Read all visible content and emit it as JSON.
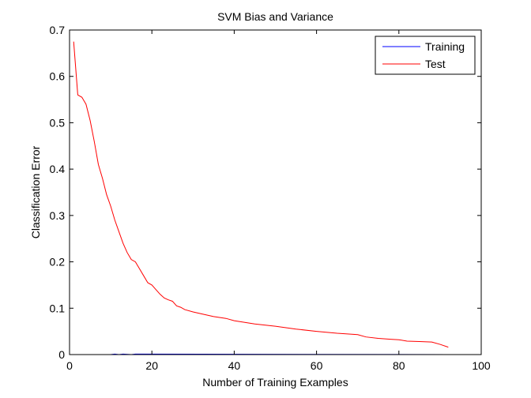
{
  "chart_data": {
    "type": "line",
    "title": "SVM Bias and Variance",
    "xlabel": "Number of Training Examples",
    "ylabel": "Classification Error",
    "xlim": [
      0,
      100
    ],
    "ylim": [
      0,
      0.7
    ],
    "xticks": [
      0,
      20,
      40,
      60,
      80,
      100
    ],
    "xtick_labels": [
      "0",
      "20",
      "40",
      "60",
      "80",
      "100"
    ],
    "yticks": [
      0,
      0.1,
      0.2,
      0.3,
      0.4,
      0.5,
      0.6,
      0.7
    ],
    "ytick_labels": [
      "0",
      "0.1",
      "0.2",
      "0.3",
      "0.4",
      "0.5",
      "0.6",
      "0.7"
    ],
    "grid": false,
    "legend_position": "top-right",
    "series": [
      {
        "name": "Training",
        "color": "#0000ff",
        "x": [
          1,
          10,
          11,
          12,
          13,
          15,
          16,
          92
        ],
        "y": [
          0,
          0,
          0.001,
          0,
          0.001,
          0,
          0.001,
          0
        ]
      },
      {
        "name": "Test",
        "color": "#ff0000",
        "x": [
          1,
          2,
          3,
          4,
          5,
          6,
          7,
          8,
          9,
          10,
          11,
          12,
          13,
          14,
          15,
          16,
          17,
          18,
          19,
          20,
          21,
          22,
          23,
          24,
          25,
          26,
          27,
          28,
          30,
          32,
          35,
          38,
          40,
          45,
          50,
          55,
          60,
          65,
          70,
          72,
          75,
          78,
          80,
          82,
          85,
          88,
          90,
          92
        ],
        "y": [
          0.675,
          0.56,
          0.555,
          0.54,
          0.505,
          0.46,
          0.41,
          0.38,
          0.345,
          0.32,
          0.29,
          0.265,
          0.24,
          0.22,
          0.205,
          0.2,
          0.185,
          0.17,
          0.155,
          0.15,
          0.14,
          0.13,
          0.122,
          0.118,
          0.115,
          0.105,
          0.102,
          0.097,
          0.092,
          0.088,
          0.082,
          0.078,
          0.073,
          0.066,
          0.061,
          0.055,
          0.05,
          0.046,
          0.043,
          0.038,
          0.035,
          0.033,
          0.032,
          0.029,
          0.028,
          0.027,
          0.022,
          0.016
        ]
      }
    ]
  }
}
